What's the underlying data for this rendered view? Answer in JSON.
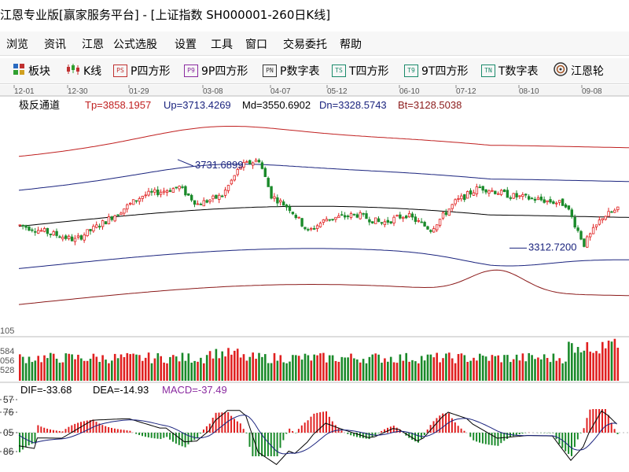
{
  "window": {
    "title": "江恩专业版[赢家服务平台] - [上证指数  SH000001-260日K线]"
  },
  "menu": [
    "浏览",
    "资讯",
    "江恩",
    "公式选股",
    "设置",
    "工具",
    "窗口",
    "交易委托",
    "帮助"
  ],
  "toolbar": [
    {
      "label": "板块",
      "icon": "grid-icon"
    },
    {
      "label": "K线",
      "icon": "candlestick-icon"
    },
    {
      "label": "P四方形",
      "icon": "PS"
    },
    {
      "label": "9P四方形",
      "icon": "P9"
    },
    {
      "label": "P数字表",
      "icon": "PN"
    },
    {
      "label": "T四方形",
      "icon": "TS"
    },
    {
      "label": "9T四方形",
      "icon": "T9"
    },
    {
      "label": "T数字表",
      "icon": "TN"
    },
    {
      "label": "江恩轮",
      "icon": "wheel-icon"
    }
  ],
  "chart": {
    "date_ticks": [
      "12-01",
      "12-30",
      "01-29",
      "03-08",
      "04-07",
      "05-12",
      "06-10",
      "07-12",
      "08-10",
      "09-08"
    ],
    "indicator_name": "极反通道",
    "indicator_values": [
      {
        "label": "Tp=3858.1957",
        "color": "#c02020"
      },
      {
        "label": "Up=3713.4269",
        "color": "#1a237e"
      },
      {
        "label": "Md=3550.6902",
        "color": "#000000"
      },
      {
        "label": "Dn=3328.5743",
        "color": "#1a237e"
      },
      {
        "label": "Bt=3128.5038",
        "color": "#8b1a1a"
      }
    ],
    "annotations": [
      {
        "label": "3731.6899"
      },
      {
        "label": "3312.7200"
      }
    ],
    "price_axis_label": "105",
    "volume_axis_labels": [
      "584",
      "056",
      "528"
    ],
    "macd": {
      "dif": "DIF=-33.68",
      "dea": "DEA=-14.93",
      "macd": "MACD=-37.49",
      "axis_labels": [
        "57",
        "76",
        "05",
        "86"
      ]
    },
    "colors": {
      "up": "#e02020",
      "down": "#1a8a2a",
      "top_band": "#c02020",
      "upper_band": "#1a237e",
      "mid": "#000000",
      "bottom_band": "#8b1a1a"
    }
  }
}
